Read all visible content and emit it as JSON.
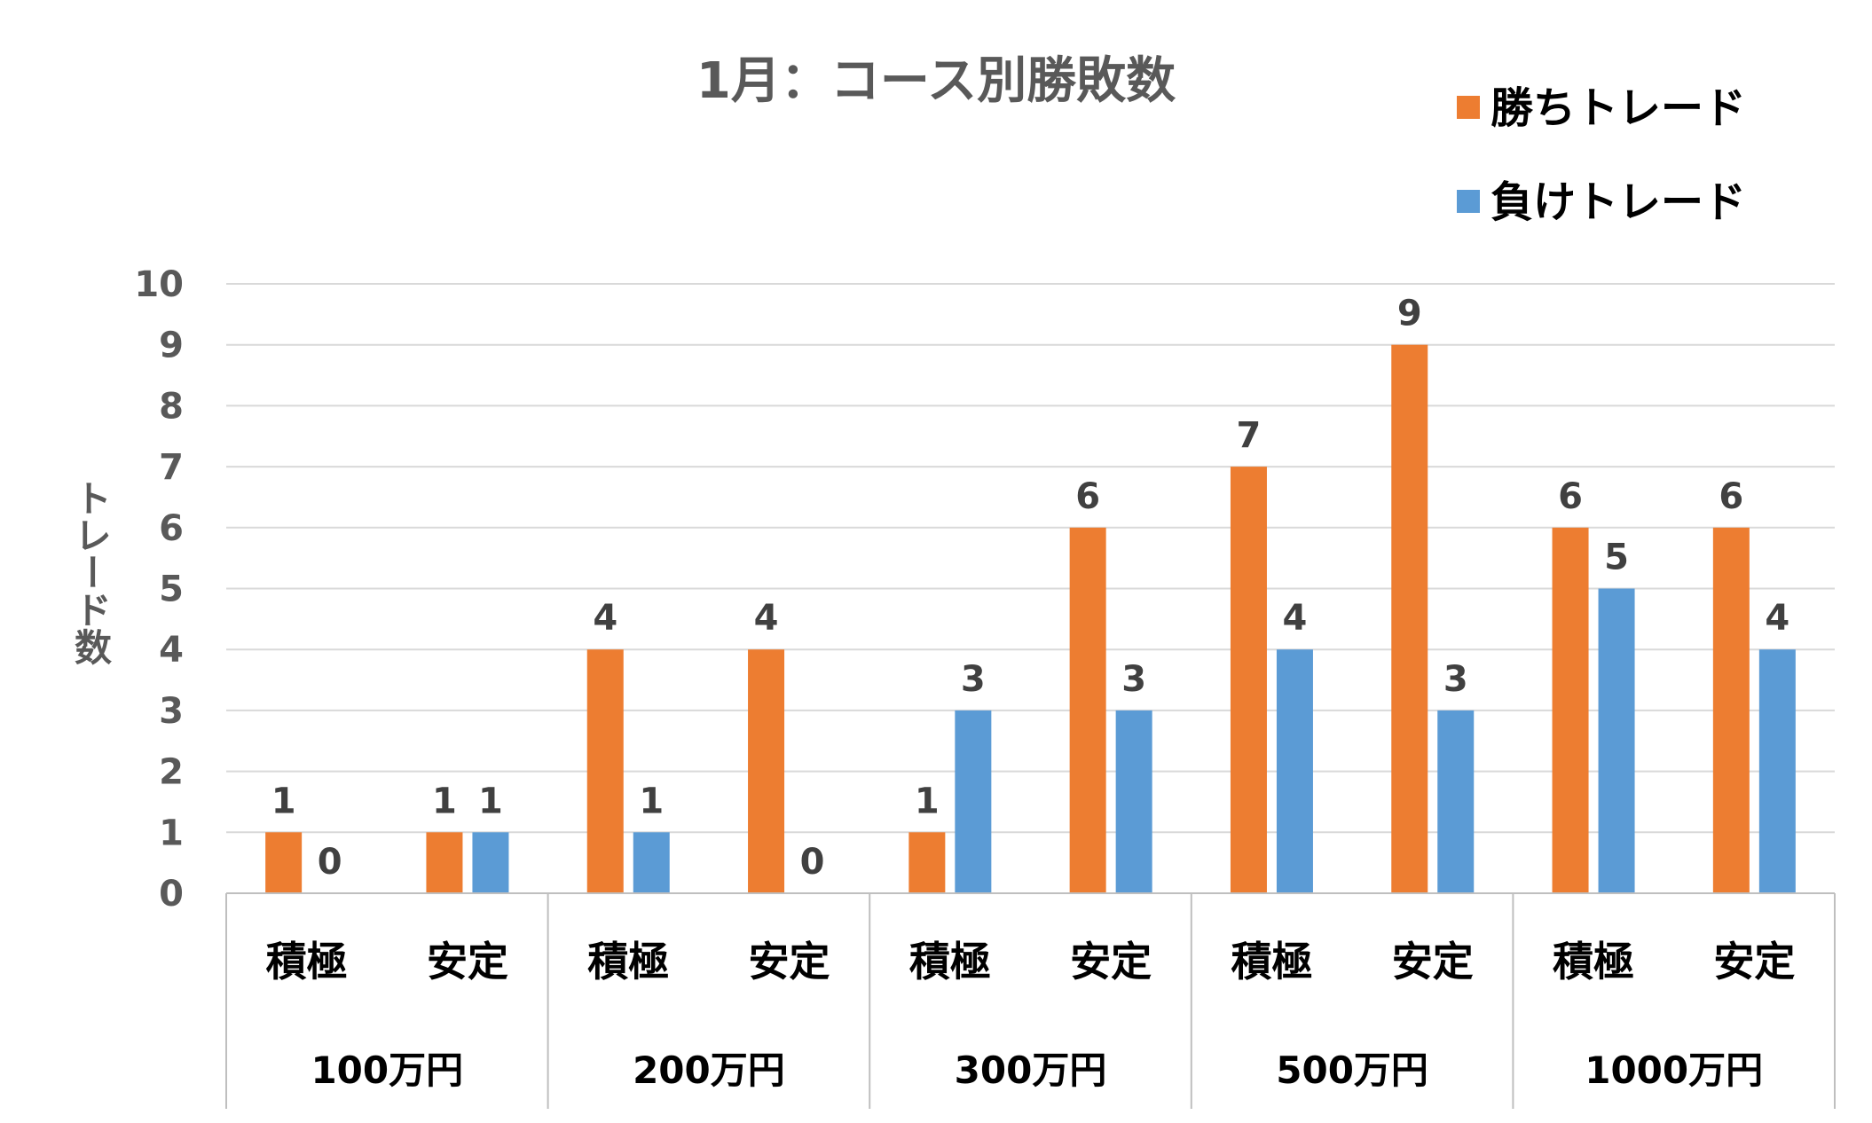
{
  "chart_data": {
    "type": "bar",
    "title": "1月：コース別勝敗数",
    "ylabel": "トレード数",
    "xlabel": "",
    "ylim": [
      0,
      10
    ],
    "yticks": [
      0,
      1,
      2,
      3,
      4,
      5,
      6,
      7,
      8,
      9,
      10
    ],
    "grid": true,
    "legend_position": "top-right",
    "groups": [
      "100万円",
      "200万円",
      "300万円",
      "500万円",
      "1000万円"
    ],
    "categories": [
      "積極",
      "安定",
      "積極",
      "安定",
      "積極",
      "安定",
      "積極",
      "安定",
      "積極",
      "安定"
    ],
    "series": [
      {
        "name": "勝ちトレード",
        "color": "#ed7d31",
        "values": [
          1,
          1,
          4,
          4,
          1,
          6,
          7,
          9,
          6,
          6
        ]
      },
      {
        "name": "負けトレード",
        "color": "#5b9bd5",
        "values": [
          0,
          1,
          1,
          0,
          3,
          3,
          4,
          3,
          5,
          4
        ]
      }
    ]
  }
}
